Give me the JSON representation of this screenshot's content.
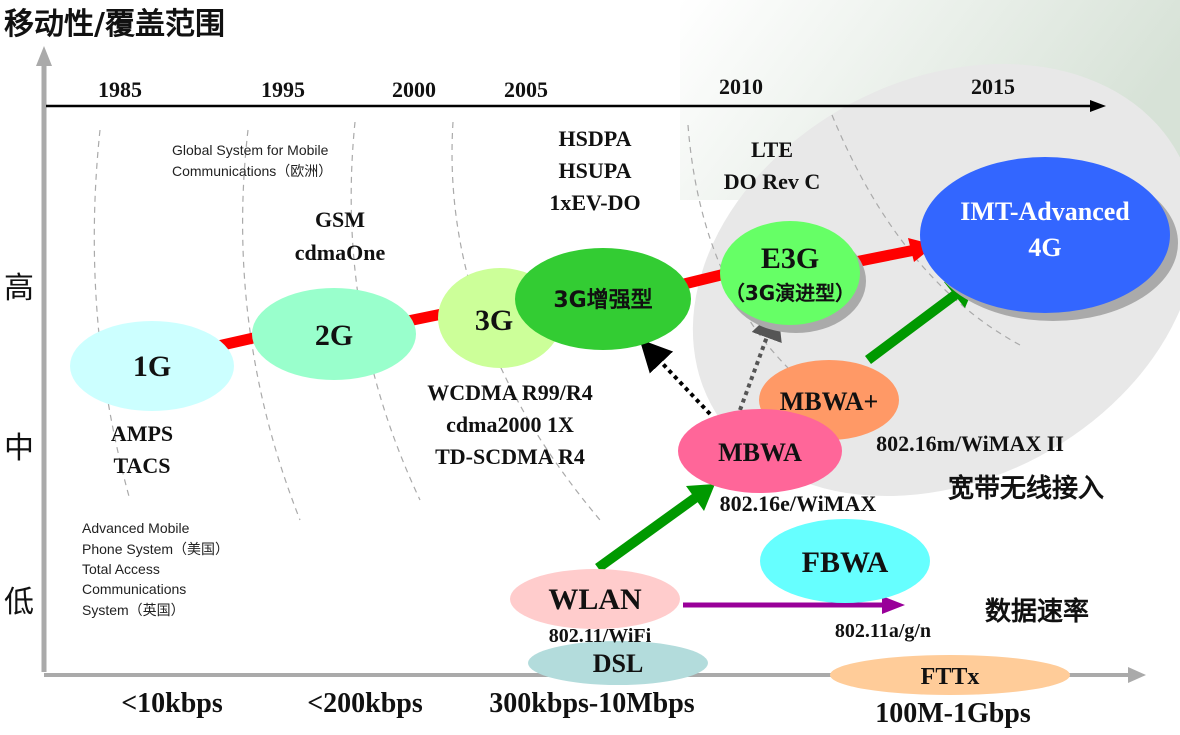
{
  "title": "移动性/覆盖范围",
  "years": [
    "1985",
    "1995",
    "2000",
    "2005",
    "2010",
    "2015"
  ],
  "y_levels": [
    "高",
    "中",
    "低"
  ],
  "x_rates": [
    "<10kbps",
    "<200kbps",
    "300kbps-10Mbps",
    "100M-1Gbps"
  ],
  "nodes": {
    "g1": "1G",
    "g2": "2G",
    "g3": "3G",
    "g3e": "3G增强型",
    "e3g": "E3G",
    "e3g_sub": "（3G演进型）",
    "imt": "IMT-Advanced",
    "imt_sub": "4G",
    "mbwa_plus": "MBWA+",
    "mbwa": "MBWA",
    "fbwa": "FBWA",
    "wlan": "WLAN",
    "dsl": "DSL",
    "fttx": "FTTx"
  },
  "labels": {
    "amps": "AMPS",
    "tacs": "TACS",
    "gsm": "GSM",
    "cdmaone": "cdmaOne",
    "gsm_note1": "Global System for Mobile",
    "gsm_note2": "Communications（欧洲）",
    "hsdpa": "HSDPA",
    "hsupa": "HSUPA",
    "evdo": "1xEV-DO",
    "lte": "LTE",
    "dorevc": "DO Rev C",
    "wcdma": "WCDMA R99/R4",
    "cdma2000": "cdma2000 1X",
    "tdscdma": "TD-SCDMA R4",
    "wimax2": "802.16m/WiMAX II",
    "wimax": "802.16e/WiMAX",
    "bwa": "宽带无线接入",
    "wifi": "802.11/WiFi",
    "wifi_abg": "802.11a/g/n",
    "data_rate": "数据速率",
    "amps_note1": "Advanced Mobile",
    "amps_note2": "Phone System（美国）",
    "amps_note3": "Total Access",
    "amps_note4": "Communications",
    "amps_note5": "System（英国）"
  }
}
